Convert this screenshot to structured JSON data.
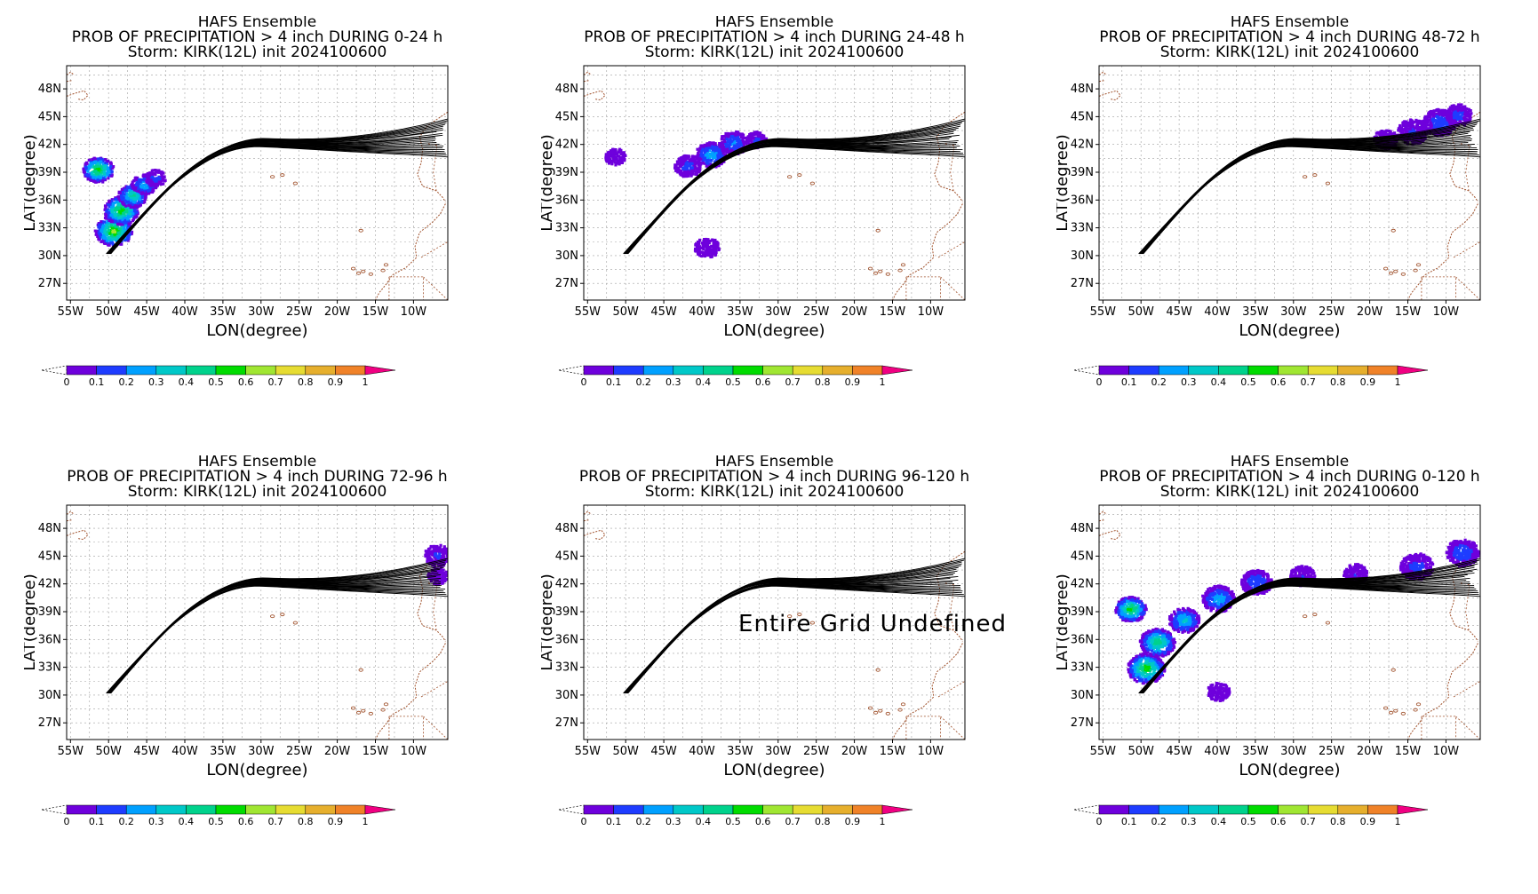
{
  "colors": {
    "colorbar": [
      "#a000c8",
      "#6e00dc",
      "#1e3cff",
      "#00a0ff",
      "#00c8c8",
      "#00d28c",
      "#00dc00",
      "#a0e632",
      "#e6dc32",
      "#e6af2d",
      "#f08228",
      "#fa3c3c",
      "#f00082"
    ],
    "track": "#000000",
    "coast": "#a0522d",
    "grid": "#a0a0a0"
  },
  "axes": {
    "xlabel": "LON(degree)",
    "ylabel": "LAT(degree)",
    "xticks": [
      "55W",
      "50W",
      "45W",
      "40W",
      "35W",
      "30W",
      "25W",
      "20W",
      "15W",
      "10W"
    ],
    "yticks": [
      "48N",
      "45N",
      "42N",
      "39N",
      "36N",
      "33N",
      "30N",
      "27N"
    ],
    "colorbar_ticks": [
      "0",
      "0.1",
      "0.2",
      "0.3",
      "0.4",
      "0.5",
      "0.6",
      "0.7",
      "0.8",
      "0.9",
      "1"
    ]
  },
  "chart_data": [
    {
      "type": "heatmap",
      "title": [
        "HAFS Ensemble",
        "PROB OF PRECIPITATION > 4 inch DURING  0-24 h",
        "Storm: KIRK(12L) init 2024100600"
      ],
      "xlabel": "LON(degree)",
      "ylabel": "LAT(degree)",
      "xlim": [
        -55.5,
        -5.5
      ],
      "ylim": [
        25.2,
        50.5
      ],
      "blobs": [
        {
          "lon": -51.5,
          "lat": 39.4,
          "r": 1.5,
          "p": 0.6
        },
        {
          "lon": -49.5,
          "lat": 32.8,
          "r": 1.8,
          "p": 0.65
        },
        {
          "lon": -48.5,
          "lat": 35.0,
          "r": 1.7,
          "p": 0.6
        },
        {
          "lon": -47.0,
          "lat": 36.6,
          "r": 1.4,
          "p": 0.45
        },
        {
          "lon": -45.5,
          "lat": 37.8,
          "r": 1.2,
          "p": 0.3
        },
        {
          "lon": -44.0,
          "lat": 38.5,
          "r": 1.0,
          "p": 0.15
        }
      ],
      "undefined": false
    },
    {
      "type": "heatmap",
      "title": [
        "HAFS Ensemble",
        "PROB OF PRECIPITATION > 4 inch DURING 24-48 h",
        "Storm: KIRK(12L) init 2024100600"
      ],
      "xlabel": "LON(degree)",
      "ylabel": "LAT(degree)",
      "xlim": [
        -55.5,
        -5.5
      ],
      "ylim": [
        25.2,
        50.5
      ],
      "blobs": [
        {
          "lon": -51.5,
          "lat": 40.8,
          "r": 1.0,
          "p": 0.08
        },
        {
          "lon": -42.0,
          "lat": 39.8,
          "r": 1.3,
          "p": 0.15
        },
        {
          "lon": -39.0,
          "lat": 41.0,
          "r": 1.5,
          "p": 0.3
        },
        {
          "lon": -36.0,
          "lat": 42.3,
          "r": 1.4,
          "p": 0.22
        },
        {
          "lon": -33.0,
          "lat": 42.6,
          "r": 1.0,
          "p": 0.12
        },
        {
          "lon": -39.5,
          "lat": 31.0,
          "r": 1.2,
          "p": 0.05
        }
      ],
      "undefined": false
    },
    {
      "type": "heatmap",
      "title": [
        "HAFS Ensemble",
        "PROB OF PRECIPITATION > 4 inch DURING 48-72 h",
        "Storm: KIRK(12L) init 2024100600"
      ],
      "xlabel": "LON(degree)",
      "ylabel": "LAT(degree)",
      "xlim": [
        -55.5,
        -5.5
      ],
      "ylim": [
        25.2,
        50.5
      ],
      "blobs": [
        {
          "lon": -18.0,
          "lat": 42.7,
          "r": 1.2,
          "p": 0.06
        },
        {
          "lon": -14.5,
          "lat": 43.5,
          "r": 1.5,
          "p": 0.12
        },
        {
          "lon": -11.0,
          "lat": 44.5,
          "r": 1.6,
          "p": 0.18
        },
        {
          "lon": -8.5,
          "lat": 45.3,
          "r": 1.3,
          "p": 0.15
        }
      ],
      "undefined": false
    },
    {
      "type": "heatmap",
      "title": [
        "HAFS Ensemble",
        "PROB OF PRECIPITATION > 4 inch DURING 72-96 h",
        "Storm: KIRK(12L) init 2024100600"
      ],
      "xlabel": "LON(degree)",
      "ylabel": "LAT(degree)",
      "xlim": [
        -55.5,
        -5.5
      ],
      "ylim": [
        25.2,
        50.5
      ],
      "blobs": [
        {
          "lon": -7.0,
          "lat": 45.2,
          "r": 1.3,
          "p": 0.12
        },
        {
          "lon": -7.0,
          "lat": 43.0,
          "r": 1.0,
          "p": 0.1
        }
      ],
      "undefined": false
    },
    {
      "type": "heatmap",
      "title": [
        "HAFS Ensemble",
        "PROB OF PRECIPITATION > 4 inch DURING 96-120 h",
        "Storm: KIRK(12L) init 2024100600"
      ],
      "xlabel": "LON(degree)",
      "ylabel": "LAT(degree)",
      "xlim": [
        -55.5,
        -5.5
      ],
      "ylim": [
        25.2,
        50.5
      ],
      "blobs": [],
      "undefined": true,
      "annotation": "Entire Grid Undefined"
    },
    {
      "type": "heatmap",
      "title": [
        "HAFS Ensemble",
        "PROB OF PRECIPITATION > 4 inch DURING 0-120 h",
        "Storm: KIRK(12L) init 2024100600"
      ],
      "xlabel": "LON(degree)",
      "ylabel": "LAT(degree)",
      "xlim": [
        -55.5,
        -5.5
      ],
      "ylim": [
        25.2,
        50.5
      ],
      "blobs": [
        {
          "lon": -51.5,
          "lat": 39.4,
          "r": 1.5,
          "p": 0.6
        },
        {
          "lon": -49.5,
          "lat": 33.0,
          "r": 1.8,
          "p": 0.6
        },
        {
          "lon": -48.0,
          "lat": 35.8,
          "r": 1.7,
          "p": 0.5
        },
        {
          "lon": -44.5,
          "lat": 38.2,
          "r": 1.5,
          "p": 0.35
        },
        {
          "lon": -40.0,
          "lat": 40.5,
          "r": 1.6,
          "p": 0.3
        },
        {
          "lon": -35.0,
          "lat": 42.3,
          "r": 1.5,
          "p": 0.2
        },
        {
          "lon": -29.0,
          "lat": 43.0,
          "r": 1.2,
          "p": 0.1
        },
        {
          "lon": -22.0,
          "lat": 43.2,
          "r": 1.2,
          "p": 0.1
        },
        {
          "lon": -14.0,
          "lat": 44.0,
          "r": 1.6,
          "p": 0.15
        },
        {
          "lon": -8.0,
          "lat": 45.5,
          "r": 1.6,
          "p": 0.2
        },
        {
          "lon": -40.0,
          "lat": 30.5,
          "r": 1.1,
          "p": 0.05
        }
      ],
      "undefined": false
    }
  ]
}
